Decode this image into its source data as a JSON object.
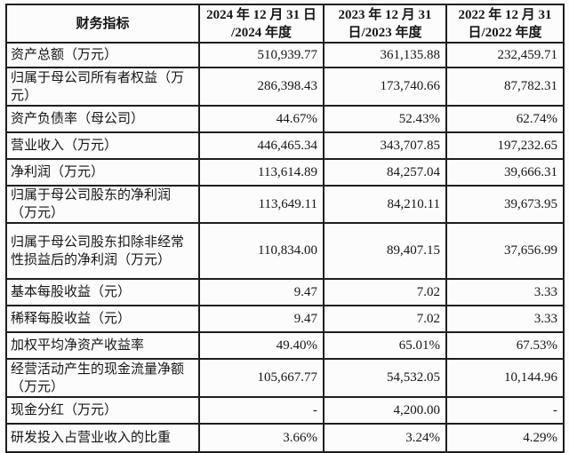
{
  "table": {
    "header": {
      "indicator": "财务指标",
      "col2024": "2024 年 12 月 31 日\n/2024 年度",
      "col2023": "2023 年 12 月 31\n日/2023 年度",
      "col2022": "2022 年 12 月 31\n日/2022 年度"
    },
    "rows": [
      {
        "label": "资产总额（万元）",
        "v1": "510,939.77",
        "v2": "361,135.88",
        "v3": "232,459.71"
      },
      {
        "label": "归属于母公司所有者权益（万\n元）",
        "v1": "286,398.43",
        "v2": "173,740.66",
        "v3": "87,782.31"
      },
      {
        "label": "资产负债率（母公司）",
        "v1": "44.67%",
        "v2": "52.43%",
        "v3": "62.74%"
      },
      {
        "label": "营业收入（万元）",
        "v1": "446,465.34",
        "v2": "343,707.85",
        "v3": "197,232.65"
      },
      {
        "label": "净利润（万元）",
        "v1": "113,614.89",
        "v2": "84,257.04",
        "v3": "39,666.31"
      },
      {
        "label": "归属于母公司股东的净利润\n（万元）",
        "v1": "113,649.11",
        "v2": "84,210.11",
        "v3": "39,673.95"
      },
      {
        "label": "归属于母公司股东扣除非经常\n性损益后的净利润（万元）",
        "v1": "110,834.00",
        "v2": "89,407.15",
        "v3": "37,656.99"
      },
      {
        "label": "基本每股收益（元）",
        "v1": "9.47",
        "v2": "7.02",
        "v3": "3.33"
      },
      {
        "label": "稀释每股收益（元）",
        "v1": "9.47",
        "v2": "7.02",
        "v3": "3.33"
      },
      {
        "label": "加权平均净资产收益率",
        "v1": "49.40%",
        "v2": "65.01%",
        "v3": "67.53%"
      },
      {
        "label": "经营活动产生的现金流量净额\n（万元）",
        "v1": "105,667.77",
        "v2": "54,532.05",
        "v3": "10,144.96"
      },
      {
        "label": "现金分红（万元）",
        "v1": "-",
        "v2": "4,200.00",
        "v3": "-"
      },
      {
        "label": "研发投入占营业收入的比重",
        "v1": "3.66%",
        "v2": "3.24%",
        "v3": "4.29%"
      }
    ]
  }
}
